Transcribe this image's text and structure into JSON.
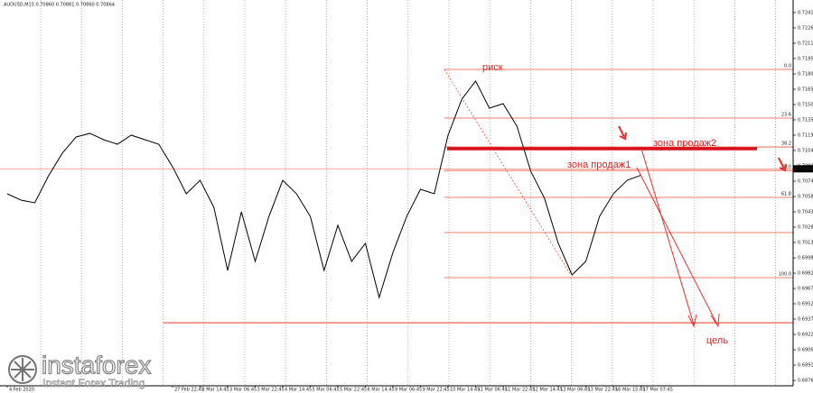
{
  "chart_data": {
    "type": "line",
    "title": "AUDUSD,M15  0.70860 0.70881 0.70860 0.70864",
    "categories": [
      "4 Feb 2020",
      null,
      null,
      null,
      null,
      null,
      null,
      null,
      null,
      null,
      null,
      null,
      "27 Feb 22:45",
      null,
      "2 Mar 14:45",
      null,
      "3 Mar 06:45",
      null,
      "3 Mar 22:45",
      null,
      "4 Mar 14:45",
      null,
      "5 Mar 06:45",
      null,
      "5 Mar 22:45",
      null,
      "6 Mar 14:45",
      null,
      "9 Mar 06:45",
      null,
      "9 Mar 22:45",
      null,
      "10 Mar 14:45",
      null,
      "11 Mar 06:45",
      null,
      "11 Mar 22:45",
      null,
      "12 Mar 14:45",
      null,
      "13 Mar 06:45",
      null,
      "13 Mar 22:45",
      null,
      "16 Mar 15:45",
      null,
      "17 Mar 07:45"
    ],
    "values": [
      0.70616,
      0.70553,
      0.70527,
      0.70795,
      0.71019,
      0.7118,
      0.71216,
      0.71153,
      0.71108,
      0.71198,
      0.71153,
      0.71108,
      0.70885,
      0.70616,
      0.7075,
      0.70482,
      0.69855,
      0.70437,
      0.69945,
      0.70392,
      0.7075,
      0.70616,
      0.70392,
      0.69855,
      0.70303,
      0.69945,
      0.70124,
      0.69587,
      0.70034,
      0.70392,
      0.70661,
      0.70616,
      0.71198,
      0.71556,
      0.71735,
      0.71466,
      0.71511,
      0.71287,
      0.7084,
      0.70572,
      0.70124,
      0.69811,
      0.69945,
      0.70392,
      0.70616,
      0.7075,
      0.708
    ],
    "color": "#000000",
    "ylim": [
      0.6871,
      0.7254
    ],
    "yticks": [
      0.72415,
      0.72263,
      0.72111,
      0.71959,
      0.71806,
      0.71654,
      0.71502,
      0.7135,
      0.71198,
      0.71046,
      0.70894,
      0.70741,
      0.70589,
      0.70437,
      0.70285,
      0.70133,
      0.6998,
      0.69828,
      0.69676,
      0.69524,
      0.69372,
      0.6922,
      0.69067,
      0.68915,
      0.68763
    ],
    "grid": true,
    "fib_levels": [
      {
        "label": "0.0",
        "value": 0.71851
      },
      {
        "label": "23.6",
        "value": 0.71368
      },
      {
        "label": "38.2",
        "value": 0.71081
      },
      {
        "label": "50.0",
        "value": 0.70848
      },
      {
        "label": "61.8",
        "value": 0.7058
      },
      {
        "value": 0.70231
      },
      {
        "label": "100.0",
        "value": 0.69784
      }
    ],
    "fib_color": "#e8503a",
    "sell_zone_line": 0.71063,
    "support_line": 0.69336,
    "current_price": 0.70864,
    "annotations": {
      "risk": "риск",
      "zone1": "зона продаж1",
      "zone2": "зона продаж2",
      "target": "цель"
    }
  },
  "watermark": {
    "brand": "instaforex",
    "tagline": "Instant Forex Trading"
  }
}
